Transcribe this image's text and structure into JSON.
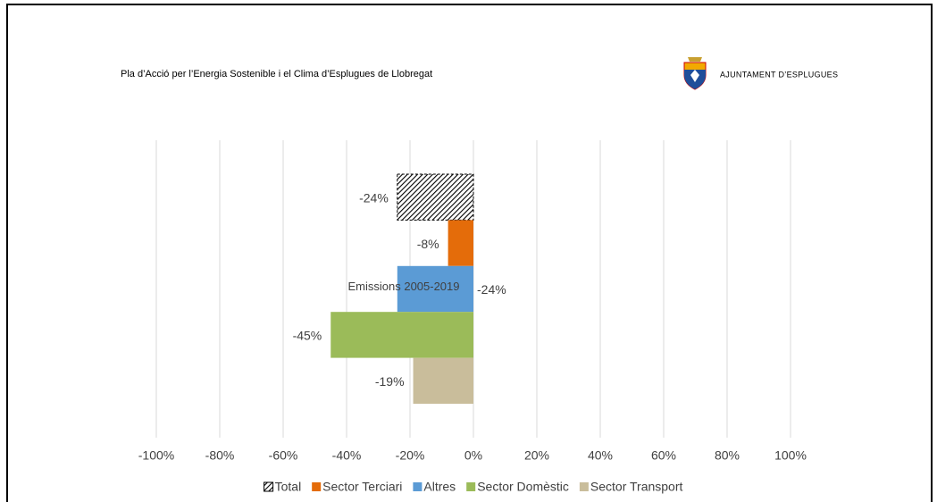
{
  "header": {
    "title": "Pla d’Acció per l’Energia Sostenible i el Clima d’Esplugues de Llobregat",
    "logo_text": "AJUNTAMENT D’ESPLUGUES"
  },
  "chart_data": {
    "type": "bar",
    "orientation": "horizontal",
    "categories": [
      "Emissions 2005-2019"
    ],
    "series": [
      {
        "name": "Total",
        "color": "#000000",
        "pattern": "diagonal-hatch",
        "values": [
          -24
        ],
        "value_labels": [
          "-24%"
        ]
      },
      {
        "name": "Sector Terciari",
        "color": "#e46c0a",
        "values": [
          -8
        ],
        "value_labels": [
          "-8%"
        ]
      },
      {
        "name": "Altres",
        "color": "#5b9bd5",
        "values": [
          -24
        ],
        "value_labels": [
          "-24%"
        ]
      },
      {
        "name": "Sector Domèstic",
        "color": "#9bbb59",
        "values": [
          -45
        ],
        "value_labels": [
          "-45%"
        ]
      },
      {
        "name": "Sector Transport",
        "color": "#c9bd9b",
        "values": [
          -19
        ],
        "value_labels": [
          "-19%"
        ]
      }
    ],
    "xlim": [
      -100,
      100
    ],
    "xticks": [
      {
        "value": -100,
        "label": "-100%"
      },
      {
        "value": -80,
        "label": "-80%"
      },
      {
        "value": -60,
        "label": "-60%"
      },
      {
        "value": -40,
        "label": "-40%"
      },
      {
        "value": -20,
        "label": "-20%"
      },
      {
        "value": 0,
        "label": "0%"
      },
      {
        "value": 20,
        "label": "20%"
      },
      {
        "value": 40,
        "label": "40%"
      },
      {
        "value": 60,
        "label": "60%"
      },
      {
        "value": 80,
        "label": "80%"
      },
      {
        "value": 100,
        "label": "100%"
      }
    ],
    "grid": true,
    "legend": "bottom"
  }
}
